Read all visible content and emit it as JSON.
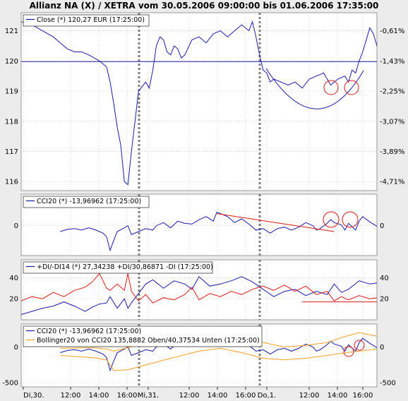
{
  "title": "Allianz NA (X) / XETRA vom 30.05.2006 09:00:00 bis 01.06.2006 17:35:00",
  "colors": {
    "price": "#1a1aa8",
    "red": "#e01818",
    "orange": "#f5a020",
    "separator": "#7f7f7f"
  },
  "x_ticks": [
    "Di,30.",
    "12:00",
    "14:00",
    "16:00",
    "Mi,31.",
    "12:00",
    "14:00",
    "16:00",
    "Do,1.",
    "12:00",
    "14:00",
    "16:00"
  ],
  "chart_data": [
    {
      "type": "line",
      "panel": "price",
      "legend": [
        "Close (*) 120,27 EUR (17:25:00)"
      ],
      "y_ticks_left": [
        "121",
        "120",
        "119",
        "118",
        "117",
        "116"
      ],
      "y_ticks_right": [
        "-0,61%",
        "-1,43%",
        "-2,25%",
        "-3,07%",
        "-3,89%",
        "-4,71%"
      ],
      "ylim": [
        115.7,
        121.6
      ],
      "xlim": [
        0,
        100
      ],
      "series": [
        {
          "name": "Close (*) 120,27 EUR (17:25:00)",
          "x": [
            0,
            3,
            6,
            9,
            11,
            13,
            15,
            17,
            19,
            22,
            24,
            25,
            26,
            27,
            28,
            29,
            30,
            31,
            33,
            35,
            36,
            37,
            38,
            39,
            40,
            41,
            42,
            43,
            44,
            45,
            46,
            48,
            50,
            52,
            54,
            56,
            58,
            60,
            62,
            64,
            65,
            66,
            67,
            68,
            69,
            70,
            71,
            73,
            75,
            77,
            79,
            81,
            83,
            85,
            87,
            89,
            91,
            92,
            93,
            94,
            95,
            96,
            97,
            98,
            99,
            100
          ],
          "values": [
            121.3,
            121.2,
            121.0,
            120.8,
            120.6,
            120.4,
            120.3,
            120.3,
            120.2,
            120.0,
            119.8,
            119.3,
            118.6,
            117.8,
            117.2,
            116.0,
            115.9,
            117.0,
            119.0,
            119.3,
            119.1,
            119.7,
            120.5,
            120.8,
            120.7,
            120.3,
            120.2,
            120.5,
            120.4,
            120.1,
            120.2,
            120.7,
            120.8,
            120.6,
            120.9,
            121.0,
            120.8,
            121.0,
            121.2,
            121.0,
            121.3,
            120.8,
            120.2,
            119.7,
            119.6,
            119.3,
            119.4,
            119.3,
            119.2,
            119.3,
            119.1,
            119.4,
            119.5,
            119.6,
            119.2,
            119.4,
            119.5,
            119.3,
            119.7,
            119.6,
            120.0,
            120.3,
            120.7,
            121.1,
            120.9,
            120.5
          ]
        },
        {
          "name": "Referenzlinie",
          "x": [
            0,
            100
          ],
          "values": [
            119.98,
            119.98
          ]
        }
      ]
    },
    {
      "type": "line",
      "panel": "cci",
      "legend": [
        "CCI20 (*) -13,96962 (17:25:00)"
      ],
      "y_ticks_left": [
        "0"
      ],
      "y_ticks_right": [
        "0"
      ],
      "ylim": [
        -400,
        420
      ],
      "xlim": [
        0,
        100
      ],
      "series": [
        {
          "name": "CCI20 (*) -13,96962 (17:25:00)",
          "x": [
            11,
            13,
            15,
            17,
            19,
            21,
            23,
            24,
            25,
            26,
            27,
            29,
            30,
            31,
            33,
            35,
            37,
            38,
            40,
            42,
            44,
            46,
            48,
            50,
            52,
            54,
            55,
            56,
            58,
            60,
            62,
            64,
            66,
            68,
            70,
            72,
            74,
            76,
            78,
            80,
            82,
            83,
            84,
            86,
            87,
            88,
            90,
            91,
            92,
            94,
            95,
            96,
            98,
            100
          ],
          "values": [
            -80,
            -50,
            -40,
            -60,
            -30,
            -60,
            -100,
            -150,
            -330,
            -200,
            -80,
            -30,
            0,
            -120,
            -80,
            -40,
            -60,
            0,
            40,
            -30,
            60,
            30,
            20,
            80,
            120,
            60,
            180,
            160,
            120,
            40,
            90,
            20,
            -60,
            -40,
            -100,
            -40,
            -20,
            -60,
            -20,
            40,
            0,
            -60,
            -40,
            30,
            80,
            40,
            10,
            -60,
            30,
            -60,
            60,
            120,
            50,
            -10
          ]
        },
        {
          "name": "Trendlinie",
          "x": [
            55,
            88
          ],
          "values": [
            160,
            -80
          ]
        }
      ]
    },
    {
      "type": "line",
      "panel": "dmi",
      "legend": [
        "+DI/-DI14 (*) 27,34238 +DI/30,86871 -DI (17:25:00)"
      ],
      "y_ticks_left": [
        "40",
        "20"
      ],
      "y_ticks_right": [
        "40",
        "20"
      ],
      "ylim": [
        0,
        57
      ],
      "xlim": [
        0,
        100
      ],
      "series": [
        {
          "name": "+DI",
          "x": [
            0,
            3,
            6,
            9,
            12,
            15,
            18,
            20,
            22,
            24,
            25,
            27,
            29,
            30,
            31,
            33,
            35,
            37,
            40,
            43,
            46,
            48,
            50,
            53,
            56,
            59,
            62,
            65,
            68,
            71,
            74,
            77,
            80,
            83,
            86,
            88,
            90,
            92,
            95,
            98,
            100
          ],
          "values": [
            5,
            8,
            11,
            13,
            17,
            13,
            8,
            12,
            15,
            16,
            22,
            11,
            20,
            11,
            16,
            25,
            34,
            38,
            30,
            37,
            34,
            29,
            41,
            32,
            34,
            37,
            41,
            36,
            29,
            22,
            27,
            29,
            23,
            27,
            24,
            34,
            26,
            29,
            37,
            34,
            35
          ]
        },
        {
          "name": "-DI",
          "x": [
            0,
            3,
            6,
            9,
            12,
            15,
            18,
            20,
            22,
            24,
            25,
            27,
            29,
            30,
            31,
            33,
            35,
            37,
            40,
            43,
            46,
            48,
            50,
            53,
            56,
            59,
            62,
            65,
            68,
            71,
            74,
            77,
            80,
            83,
            86,
            88,
            90,
            92,
            95,
            98,
            100
          ],
          "values": [
            18,
            22,
            20,
            26,
            22,
            28,
            31,
            36,
            44,
            30,
            28,
            34,
            28,
            44,
            27,
            18,
            24,
            16,
            21,
            19,
            24,
            31,
            19,
            25,
            22,
            27,
            24,
            29,
            32,
            28,
            33,
            27,
            32,
            24,
            27,
            18,
            22,
            19,
            23,
            20,
            21
          ]
        },
        {
          "name": "Linie",
          "x": [
            79,
            100
          ],
          "values": [
            17,
            17
          ]
        }
      ]
    },
    {
      "type": "line",
      "panel": "bollinger",
      "legend": [
        "CCI20 (*) -13,96962 (17:25:00)",
        "Bollinger20 von CCI20 135,8882 Oben/40,37534 Unten (17:25:00)"
      ],
      "y_ticks_left": [
        "0",
        "-500"
      ],
      "y_ticks_right": [
        "0",
        "-500"
      ],
      "ylim": [
        -560,
        320
      ],
      "xlim": [
        0,
        100
      ],
      "series": [
        {
          "name": "CCI20 (*) -13,96962 (17:25:00)",
          "x": [
            11,
            13,
            15,
            17,
            19,
            21,
            23,
            24,
            25,
            26,
            27,
            29,
            30,
            31,
            33,
            35,
            37,
            38,
            40,
            42,
            44,
            46,
            48,
            50,
            52,
            54,
            55,
            56,
            58,
            60,
            62,
            64,
            66,
            68,
            70,
            72,
            74,
            76,
            78,
            80,
            82,
            83,
            84,
            86,
            87,
            88,
            90,
            91,
            92,
            94,
            95,
            96,
            98,
            100
          ],
          "values": [
            -80,
            -50,
            -40,
            -60,
            -30,
            -60,
            -100,
            -150,
            -330,
            -200,
            -80,
            -30,
            0,
            -120,
            -80,
            -40,
            -60,
            0,
            40,
            -30,
            60,
            30,
            20,
            80,
            120,
            60,
            180,
            160,
            120,
            40,
            90,
            20,
            -60,
            -40,
            -100,
            -40,
            -20,
            -60,
            -20,
            40,
            0,
            -60,
            -40,
            30,
            80,
            40,
            10,
            -60,
            30,
            -60,
            60,
            120,
            50,
            -10
          ]
        },
        {
          "name": "Bollinger20 Oben",
          "x": [
            11,
            20,
            24,
            26,
            30,
            36,
            42,
            50,
            56,
            62,
            68,
            74,
            80,
            86,
            90,
            95,
            100
          ],
          "values": [
            -20,
            -10,
            -30,
            -60,
            -10,
            60,
            80,
            120,
            190,
            140,
            60,
            0,
            20,
            60,
            130,
            200,
            150
          ]
        },
        {
          "name": "Bollinger20 Unten",
          "x": [
            11,
            20,
            24,
            26,
            30,
            36,
            42,
            50,
            56,
            62,
            68,
            74,
            80,
            86,
            90,
            95,
            100
          ],
          "values": [
            -120,
            -150,
            -180,
            -330,
            -320,
            -240,
            -160,
            -60,
            -20,
            -80,
            -160,
            -180,
            -160,
            -120,
            -90,
            -60,
            -30
          ]
        }
      ]
    }
  ]
}
